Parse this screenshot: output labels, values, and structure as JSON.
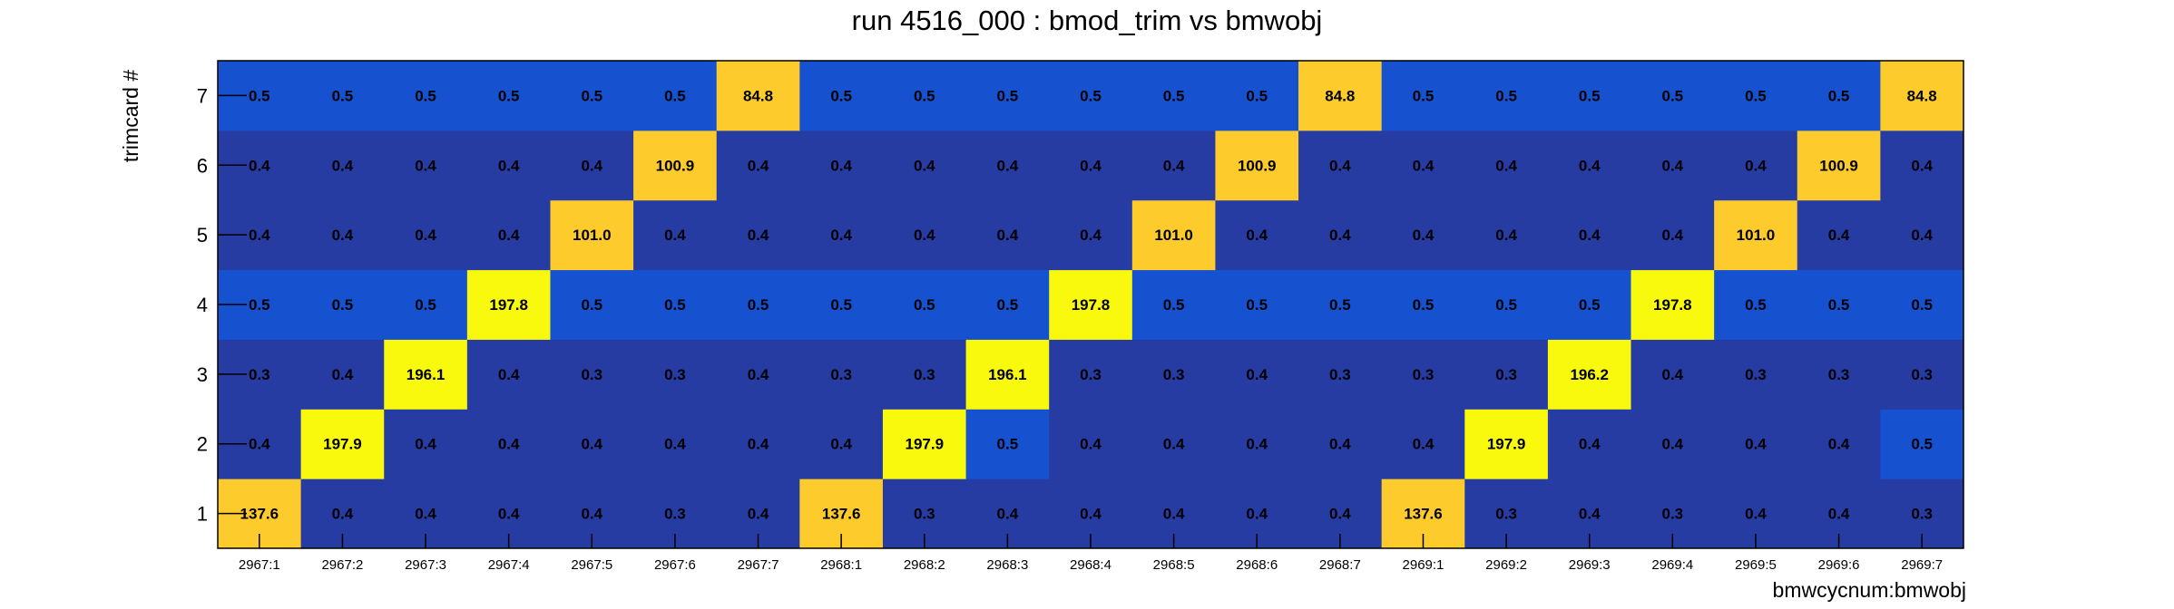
{
  "chart_data": {
    "type": "heatmap",
    "title": "run 4516_000 : bmod_trim vs bmwobj",
    "xlabel": "bmwcycnum:bmwobj",
    "ylabel": "trimcard #",
    "x_categories": [
      "2967:1",
      "2967:2",
      "2967:3",
      "2967:4",
      "2967:5",
      "2967:6",
      "2967:7",
      "2968:1",
      "2968:2",
      "2968:3",
      "2968:4",
      "2968:5",
      "2968:6",
      "2968:7",
      "2969:1",
      "2969:2",
      "2969:3",
      "2969:4",
      "2969:5",
      "2969:6",
      "2969:7"
    ],
    "y_categories": [
      "1",
      "2",
      "3",
      "4",
      "5",
      "6",
      "7"
    ],
    "values": [
      [
        "137.6",
        "0.4",
        "0.4",
        "0.4",
        "0.4",
        "0.3",
        "0.4",
        "137.6",
        "0.3",
        "0.4",
        "0.4",
        "0.4",
        "0.4",
        "0.4",
        "137.6",
        "0.3",
        "0.4",
        "0.3",
        "0.4",
        "0.4",
        "0.3"
      ],
      [
        "0.4",
        "197.9",
        "0.4",
        "0.4",
        "0.4",
        "0.4",
        "0.4",
        "0.4",
        "197.9",
        "0.5",
        "0.4",
        "0.4",
        "0.4",
        "0.4",
        "0.4",
        "197.9",
        "0.4",
        "0.4",
        "0.4",
        "0.4",
        "0.5"
      ],
      [
        "0.3",
        "0.4",
        "196.1",
        "0.4",
        "0.3",
        "0.3",
        "0.4",
        "0.3",
        "0.3",
        "196.1",
        "0.3",
        "0.3",
        "0.4",
        "0.3",
        "0.3",
        "0.3",
        "196.2",
        "0.4",
        "0.3",
        "0.3",
        "0.3"
      ],
      [
        "0.5",
        "0.5",
        "0.5",
        "197.8",
        "0.5",
        "0.5",
        "0.5",
        "0.5",
        "0.5",
        "0.5",
        "197.8",
        "0.5",
        "0.5",
        "0.5",
        "0.5",
        "0.5",
        "0.5",
        "197.8",
        "0.5",
        "0.5",
        "0.5"
      ],
      [
        "0.4",
        "0.4",
        "0.4",
        "0.4",
        "101.0",
        "0.4",
        "0.4",
        "0.4",
        "0.4",
        "0.4",
        "0.4",
        "101.0",
        "0.4",
        "0.4",
        "0.4",
        "0.4",
        "0.4",
        "0.4",
        "101.0",
        "0.4",
        "0.4"
      ],
      [
        "0.4",
        "0.4",
        "0.4",
        "0.4",
        "0.4",
        "100.9",
        "0.4",
        "0.4",
        "0.4",
        "0.4",
        "0.4",
        "0.4",
        "100.9",
        "0.4",
        "0.4",
        "0.4",
        "0.4",
        "0.4",
        "0.4",
        "100.9",
        "0.4"
      ],
      [
        "0.5",
        "0.5",
        "0.5",
        "0.5",
        "0.5",
        "0.5",
        "84.8",
        "0.5",
        "0.5",
        "0.5",
        "0.5",
        "0.5",
        "0.5",
        "84.8",
        "0.5",
        "0.5",
        "0.5",
        "0.5",
        "0.5",
        "0.5",
        "84.8"
      ]
    ],
    "colors": {
      "dark_blue": "#263ca3",
      "mid_blue": "#1652d0",
      "orange": "#fdcb2b",
      "yellow": "#f9f90d",
      "axis": "#000000"
    },
    "grid": false,
    "legend": "none"
  }
}
